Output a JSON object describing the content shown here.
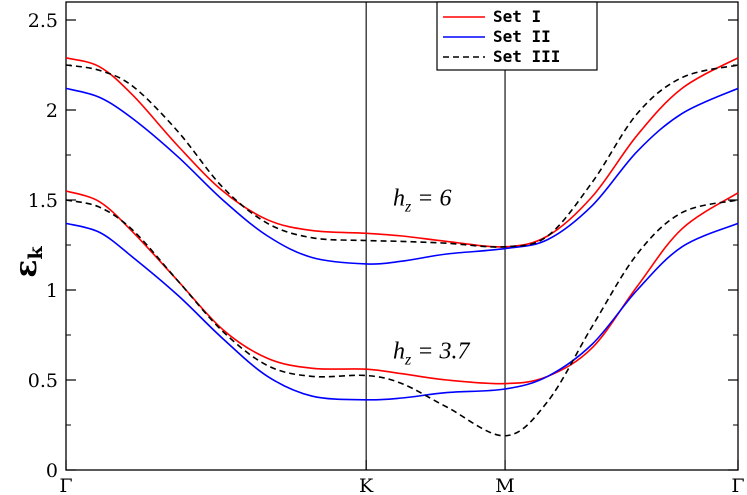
{
  "chart_data": {
    "type": "line",
    "title": "",
    "ylabel": {
      "main": "ε",
      "sub": "k"
    },
    "xlabel": "",
    "ylim": [
      0,
      2.6
    ],
    "xlim": [
      0,
      3
    ],
    "yticks": [
      0,
      0.5,
      1,
      1.5,
      2,
      2.5
    ],
    "ytick_labels": [
      "0",
      "0.5",
      "1",
      "1.5",
      "2",
      "2.5"
    ],
    "xticks": [
      {
        "x": 0,
        "label": "Γ"
      },
      {
        "x": 1.34,
        "label": "K"
      },
      {
        "x": 1.96,
        "label": "M"
      },
      {
        "x": 3,
        "label": "Γ"
      }
    ],
    "vlines": [
      1.34,
      1.96
    ],
    "grid": false,
    "legend": {
      "position": "top-right",
      "entries": [
        "Set I",
        "Set II",
        "Set III"
      ]
    },
    "colors": {
      "Set I": "#ff0000",
      "Set II": "#0000ff",
      "Set III": "#000000"
    },
    "annotations": [
      {
        "base": "h",
        "sub": "z",
        "text": " = 6",
        "x": 1.46,
        "y": 1.47
      },
      {
        "base": "h",
        "sub": "z",
        "text": " = 3.7",
        "x": 1.46,
        "y": 0.62
      }
    ],
    "series": [
      {
        "name": "Set I",
        "band": "upper",
        "dash": false,
        "x": [
          0,
          0.15,
          0.3,
          0.5,
          0.7,
          0.9,
          1.1,
          1.34,
          1.5,
          1.7,
          1.96,
          2.15,
          2.35,
          2.55,
          2.75,
          3
        ],
        "y": [
          2.29,
          2.24,
          2.08,
          1.8,
          1.55,
          1.39,
          1.33,
          1.315,
          1.3,
          1.27,
          1.24,
          1.3,
          1.52,
          1.86,
          2.12,
          2.29
        ]
      },
      {
        "name": "Set II",
        "band": "upper",
        "dash": false,
        "x": [
          0,
          0.15,
          0.3,
          0.5,
          0.7,
          0.9,
          1.1,
          1.34,
          1.5,
          1.7,
          1.96,
          2.15,
          2.35,
          2.55,
          2.75,
          3
        ],
        "y": [
          2.12,
          2.07,
          1.95,
          1.74,
          1.5,
          1.3,
          1.18,
          1.145,
          1.16,
          1.2,
          1.23,
          1.28,
          1.47,
          1.77,
          1.98,
          2.12
        ]
      },
      {
        "name": "Set III",
        "band": "upper",
        "dash": true,
        "x": [
          0,
          0.15,
          0.3,
          0.5,
          0.7,
          0.9,
          1.1,
          1.34,
          1.5,
          1.7,
          1.96,
          2.15,
          2.35,
          2.55,
          2.75,
          3
        ],
        "y": [
          2.25,
          2.22,
          2.13,
          1.88,
          1.57,
          1.37,
          1.29,
          1.275,
          1.27,
          1.26,
          1.24,
          1.3,
          1.6,
          1.98,
          2.18,
          2.25
        ]
      },
      {
        "name": "Set I",
        "band": "lower",
        "dash": false,
        "x": [
          0,
          0.15,
          0.3,
          0.5,
          0.7,
          0.9,
          1.1,
          1.34,
          1.5,
          1.7,
          1.96,
          2.15,
          2.35,
          2.55,
          2.75,
          3
        ],
        "y": [
          1.55,
          1.49,
          1.32,
          1.05,
          0.78,
          0.62,
          0.565,
          0.56,
          0.535,
          0.5,
          0.48,
          0.52,
          0.68,
          1.02,
          1.34,
          1.54
        ]
      },
      {
        "name": "Set II",
        "band": "lower",
        "dash": false,
        "x": [
          0,
          0.15,
          0.3,
          0.5,
          0.7,
          0.9,
          1.1,
          1.34,
          1.5,
          1.7,
          1.96,
          2.15,
          2.35,
          2.55,
          2.75,
          3
        ],
        "y": [
          1.37,
          1.32,
          1.18,
          0.97,
          0.73,
          0.52,
          0.41,
          0.39,
          0.4,
          0.43,
          0.45,
          0.52,
          0.7,
          1.0,
          1.24,
          1.37
        ]
      },
      {
        "name": "Set III",
        "band": "lower",
        "dash": true,
        "x": [
          0,
          0.15,
          0.3,
          0.5,
          0.7,
          0.9,
          1.1,
          1.34,
          1.5,
          1.7,
          1.96,
          2.15,
          2.35,
          2.55,
          2.75,
          3
        ],
        "y": [
          1.5,
          1.46,
          1.33,
          1.05,
          0.77,
          0.58,
          0.52,
          0.525,
          0.48,
          0.35,
          0.19,
          0.38,
          0.8,
          1.2,
          1.43,
          1.5
        ]
      }
    ]
  }
}
